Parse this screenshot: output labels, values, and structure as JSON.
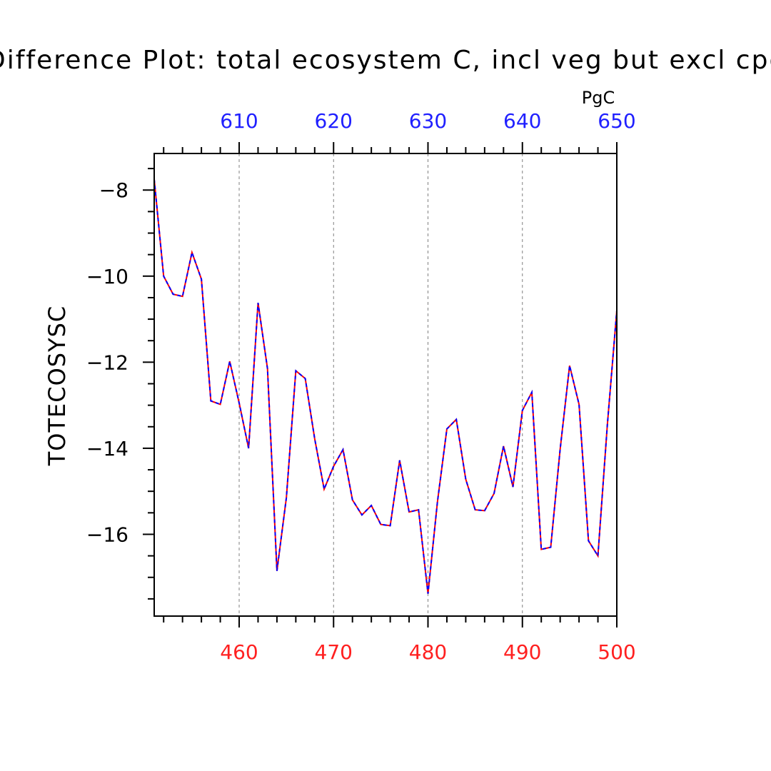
{
  "colors": {
    "bottom_axis": "#ff2020",
    "top_axis": "#2020ff",
    "line_red": "#ff0000",
    "line_blue": "#0000ff"
  },
  "chart_data": {
    "type": "line",
    "title": "Difference Plot: total ecosystem C, incl veg but excl cpool",
    "ylabel": "TOTECOSYSC",
    "top_axis_unit": "PgC",
    "xlim": [
      451,
      500
    ],
    "ylim": [
      -17.9,
      -7.15
    ],
    "top_xlim": [
      601,
      650
    ],
    "x_ticks": [
      460,
      470,
      480,
      490,
      500
    ],
    "top_x_ticks": [
      610,
      620,
      630,
      640,
      650
    ],
    "y_ticks": [
      -8,
      -10,
      -12,
      -14,
      -16
    ],
    "x_grid": [
      460,
      470,
      480,
      490
    ],
    "x": [
      451,
      452,
      453,
      454,
      455,
      456,
      457,
      458,
      459,
      460,
      461,
      462,
      463,
      464,
      465,
      466,
      467,
      468,
      469,
      470,
      471,
      472,
      473,
      474,
      475,
      476,
      477,
      478,
      479,
      480,
      481,
      482,
      483,
      484,
      485,
      486,
      487,
      488,
      489,
      490,
      491,
      492,
      493,
      494,
      495,
      496,
      497,
      498,
      499,
      500
    ],
    "series": [
      {
        "color": "#ff0000",
        "style": "solid",
        "values": [
          -7.75,
          -10.0,
          -10.42,
          -10.47,
          -9.45,
          -10.07,
          -12.9,
          -12.98,
          -11.98,
          -12.95,
          -14.0,
          -10.62,
          -12.15,
          -16.85,
          -15.15,
          -12.2,
          -12.38,
          -13.78,
          -14.95,
          -14.42,
          -14.03,
          -15.2,
          -15.55,
          -15.33,
          -15.77,
          -15.8,
          -14.28,
          -15.48,
          -15.43,
          -17.38,
          -15.25,
          -13.55,
          -13.33,
          -14.72,
          -15.43,
          -15.45,
          -15.05,
          -13.95,
          -14.9,
          -13.12,
          -12.7,
          -16.35,
          -16.3,
          -14.02,
          -12.08,
          -12.98,
          -16.15,
          -16.5,
          -13.45,
          -10.8
        ]
      },
      {
        "color": "#0000ff",
        "style": "dashed",
        "values": [
          -7.75,
          -10.0,
          -10.42,
          -10.47,
          -9.45,
          -10.07,
          -12.9,
          -12.98,
          -11.98,
          -12.95,
          -14.0,
          -10.62,
          -12.15,
          -16.85,
          -15.15,
          -12.2,
          -12.38,
          -13.78,
          -14.95,
          -14.42,
          -14.03,
          -15.2,
          -15.55,
          -15.33,
          -15.77,
          -15.8,
          -14.28,
          -15.48,
          -15.43,
          -17.38,
          -15.25,
          -13.55,
          -13.33,
          -14.72,
          -15.43,
          -15.45,
          -15.05,
          -13.95,
          -14.9,
          -13.12,
          -12.7,
          -16.35,
          -16.3,
          -14.02,
          -12.08,
          -12.98,
          -16.15,
          -16.5,
          -13.45,
          -10.8
        ]
      }
    ]
  }
}
